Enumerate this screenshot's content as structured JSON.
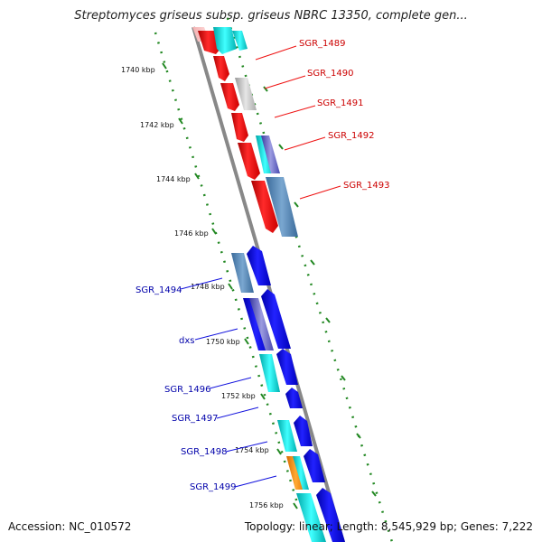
{
  "title": "Streptomyces griseus subsp. griseus NBRC 13350, complete gen...",
  "footer": {
    "accession": "Accession: NC_010572",
    "summary": "Topology: linear; Length: 8,545,929 bp; Genes: 7,222"
  },
  "colors": {
    "forward_gene": "#ee1111",
    "reverse_gene": "#1111dd",
    "forward_label": "#cc0000",
    "reverse_label": "#0000aa",
    "backbone": "#888888",
    "ticks": "#228822"
  },
  "scale_labels": [
    "1740 kbp",
    "1742 kbp",
    "1744 kbp",
    "1746 kbp",
    "1748 kbp",
    "1750 kbp",
    "1752 kbp",
    "1754 kbp",
    "1756 kbp"
  ],
  "forward_genes": [
    "SGR_1489",
    "SGR_1490",
    "SGR_1491",
    "SGR_1492",
    "SGR_1493"
  ],
  "reverse_genes": [
    "SGR_1494",
    "dxs",
    "SGR_1496",
    "SGR_1497",
    "SGR_1498",
    "SGR_1499"
  ]
}
